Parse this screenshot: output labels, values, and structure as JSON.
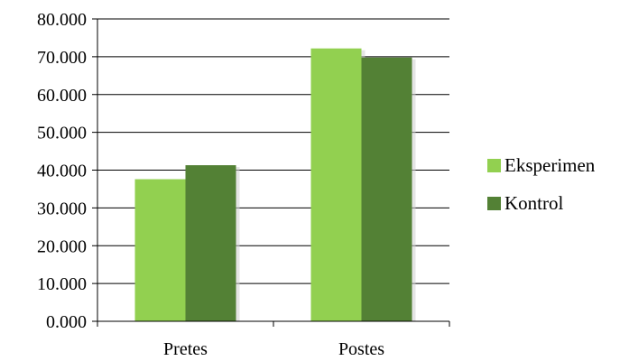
{
  "chart_data": {
    "type": "bar",
    "title": "",
    "xlabel": "",
    "ylabel": "",
    "categories": [
      "Pretes",
      "Postes"
    ],
    "series": [
      {
        "name": "Eksperimen",
        "values": [
          37.6,
          72.2
        ],
        "color": "#92d050"
      },
      {
        "name": "Kontrol",
        "values": [
          41.3,
          69.8
        ],
        "color": "#538135"
      }
    ],
    "ylim": [
      0,
      80
    ],
    "yticks": [
      0,
      10,
      20,
      30,
      40,
      50,
      60,
      70,
      80
    ],
    "ytick_labels": [
      "0.000",
      "10.000",
      "20.000",
      "30.000",
      "40.000",
      "50.000",
      "60.000",
      "70.000",
      "80.000"
    ],
    "grid": true,
    "legend_position": "right"
  }
}
